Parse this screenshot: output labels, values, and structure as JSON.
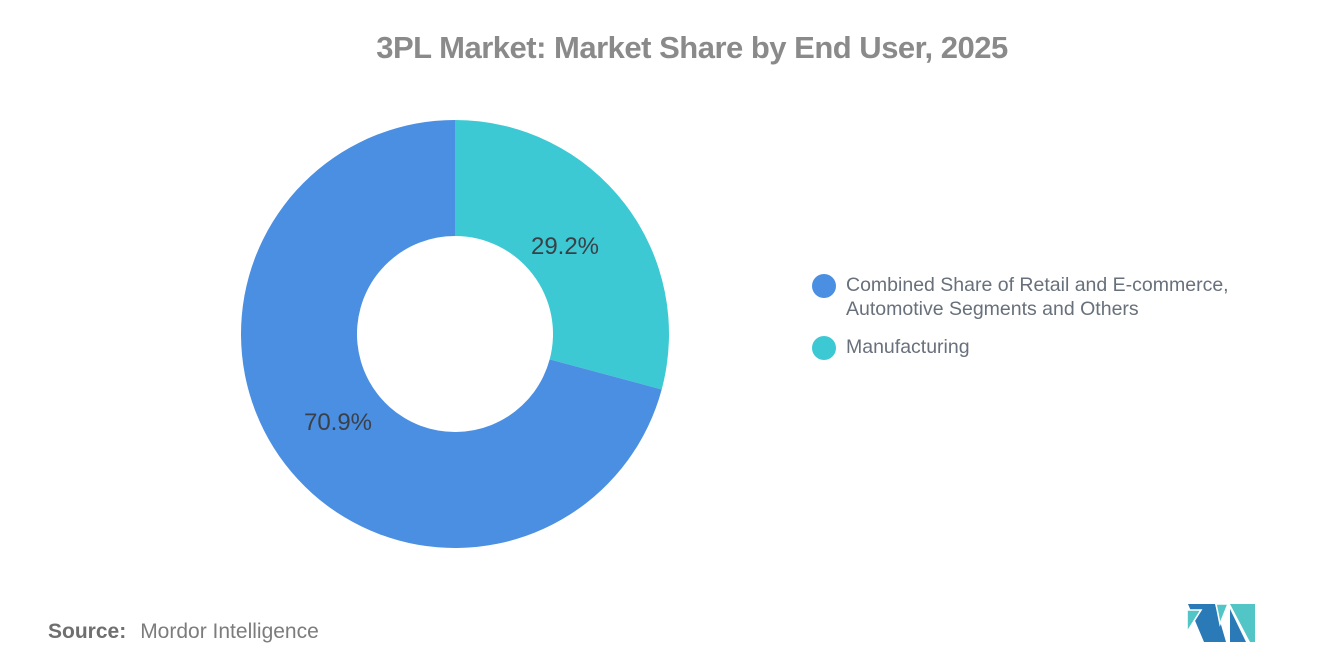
{
  "title": "3PL Market: Market Share by End User, 2025",
  "chart_data": {
    "type": "pie",
    "subtype": "donut",
    "title": "3PL Market: Market Share by End User, 2025",
    "unit": "%",
    "series": [
      {
        "name": "Combined Share of Retail and E-commerce, Automotive Segments and Others",
        "value": 70.9,
        "label": "70.9%",
        "color": "#4a8fe2"
      },
      {
        "name": "Manufacturing",
        "value": 29.2,
        "label": "29.2%",
        "color": "#3cc9d3"
      }
    ],
    "slice_order": [
      1,
      0
    ],
    "start_angle_deg": 0,
    "direction": "clockwise",
    "inner_radius_ratio": 0.458,
    "legend_position": "right",
    "background": "#ffffff"
  },
  "legend": {
    "items": [
      {
        "color": "#4a8fe2",
        "lines": [
          "Combined Share of Retail and E-commerce,",
          "Automotive Segments and Others"
        ]
      },
      {
        "color": "#3cc9d3",
        "lines": [
          "Manufacturing"
        ]
      }
    ]
  },
  "footer": {
    "source_label": "Source:",
    "source_value": "Mordor Intelligence"
  },
  "logo": {
    "name": "mordor-intelligence-logo",
    "teal": "#52c5c6",
    "blue": "#2a7ab8"
  }
}
